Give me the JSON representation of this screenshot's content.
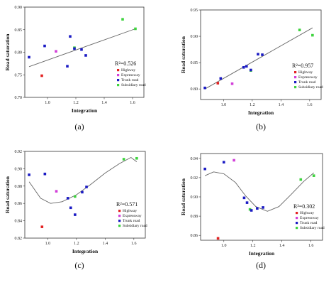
{
  "legend_labels": {
    "Highway": "Highway",
    "Expressway": "Expressway",
    "Trunk": "Trunk road",
    "Subsidiary": "Subsidiary road"
  },
  "colors": {
    "Highway": "#e32222",
    "Expressway": "#d23fd9",
    "Trunk": "#1b1bc4",
    "Subsidiary": "#3fd33f",
    "fit": "#666666"
  },
  "chart_data": [
    {
      "type": "scatter",
      "caption": "(a)",
      "r2": "R²=0.526",
      "xlabel": "Integration",
      "ylabel": "Road saturation",
      "xlim": [
        0.84,
        1.68
      ],
      "ylim": [
        0.7,
        0.9
      ],
      "xticks": [
        "1.0",
        "1.2",
        "1.4",
        "1.6"
      ],
      "yticks": [
        "0.70",
        "0.75",
        "0.80",
        "0.85",
        "0.90"
      ],
      "points": [
        {
          "x": 0.87,
          "y": 0.789,
          "s": "Trunk"
        },
        {
          "x": 0.96,
          "y": 0.748,
          "s": "Highway"
        },
        {
          "x": 0.98,
          "y": 0.814,
          "s": "Trunk"
        },
        {
          "x": 1.06,
          "y": 0.802,
          "s": "Expressway"
        },
        {
          "x": 1.14,
          "y": 0.769,
          "s": "Trunk"
        },
        {
          "x": 1.16,
          "y": 0.835,
          "s": "Trunk"
        },
        {
          "x": 1.19,
          "y": 0.81,
          "s": "Subsidiary"
        },
        {
          "x": 1.19,
          "y": 0.808,
          "s": "Trunk"
        },
        {
          "x": 1.24,
          "y": 0.806,
          "s": "Trunk"
        },
        {
          "x": 1.27,
          "y": 0.793,
          "s": "Trunk"
        },
        {
          "x": 1.53,
          "y": 0.873,
          "s": "Subsidiary"
        },
        {
          "x": 1.62,
          "y": 0.852,
          "s": "Subsidiary"
        }
      ],
      "fit": {
        "x": [
          0.87,
          1.62
        ],
        "y": [
          0.768,
          0.852
        ]
      }
    },
    {
      "type": "scatter",
      "caption": "(b)",
      "r2": "R²=0.957",
      "xlabel": "Integration",
      "ylabel": "Road saturation",
      "xlim": [
        0.84,
        1.68
      ],
      "ylim": [
        0.78,
        0.95
      ],
      "xticks": [
        "1.0",
        "1.2",
        "1.4",
        "1.6"
      ],
      "yticks": [
        "0.80",
        "0.85",
        "0.90",
        "0.95"
      ],
      "points": [
        {
          "x": 0.87,
          "y": 0.802,
          "s": "Trunk"
        },
        {
          "x": 0.96,
          "y": 0.811,
          "s": "Highway"
        },
        {
          "x": 0.98,
          "y": 0.82,
          "s": "Trunk"
        },
        {
          "x": 1.06,
          "y": 0.81,
          "s": "Expressway"
        },
        {
          "x": 1.14,
          "y": 0.841,
          "s": "Trunk"
        },
        {
          "x": 1.16,
          "y": 0.843,
          "s": "Trunk"
        },
        {
          "x": 1.19,
          "y": 0.835,
          "s": "Subsidiary"
        },
        {
          "x": 1.19,
          "y": 0.836,
          "s": "Trunk"
        },
        {
          "x": 1.24,
          "y": 0.866,
          "s": "Trunk"
        },
        {
          "x": 1.27,
          "y": 0.865,
          "s": "Trunk"
        },
        {
          "x": 1.53,
          "y": 0.912,
          "s": "Subsidiary"
        },
        {
          "x": 1.62,
          "y": 0.902,
          "s": "Subsidiary"
        }
      ],
      "fit": {
        "x": [
          0.87,
          1.62
        ],
        "y": [
          0.8,
          0.916
        ]
      }
    },
    {
      "type": "scatter",
      "caption": "(c)",
      "r2": "R²=0.571",
      "xlabel": "Integration",
      "ylabel": "Road saturation",
      "xlim": [
        0.84,
        1.68
      ],
      "ylim": [
        0.82,
        0.92
      ],
      "xticks": [
        "1.0",
        "1.2",
        "1.4",
        "1.6"
      ],
      "yticks": [
        "0.82",
        "0.84",
        "0.86",
        "0.88",
        "0.90",
        "0.92"
      ],
      "points": [
        {
          "x": 0.87,
          "y": 0.893,
          "s": "Trunk"
        },
        {
          "x": 0.96,
          "y": 0.833,
          "s": "Highway"
        },
        {
          "x": 0.98,
          "y": 0.894,
          "s": "Trunk"
        },
        {
          "x": 1.06,
          "y": 0.874,
          "s": "Expressway"
        },
        {
          "x": 1.14,
          "y": 0.866,
          "s": "Trunk"
        },
        {
          "x": 1.16,
          "y": 0.855,
          "s": "Trunk"
        },
        {
          "x": 1.19,
          "y": 0.868,
          "s": "Subsidiary"
        },
        {
          "x": 1.19,
          "y": 0.847,
          "s": "Trunk"
        },
        {
          "x": 1.24,
          "y": 0.873,
          "s": "Trunk"
        },
        {
          "x": 1.27,
          "y": 0.879,
          "s": "Trunk"
        },
        {
          "x": 1.53,
          "y": 0.911,
          "s": "Subsidiary"
        },
        {
          "x": 1.62,
          "y": 0.912,
          "s": "Subsidiary"
        }
      ],
      "fit": {
        "x": [
          0.87,
          0.95,
          1.02,
          1.1,
          1.2,
          1.3,
          1.4,
          1.5,
          1.58,
          1.62
        ],
        "y": [
          0.885,
          0.866,
          0.86,
          0.862,
          0.87,
          0.882,
          0.895,
          0.906,
          0.913,
          0.908
        ]
      }
    },
    {
      "type": "scatter",
      "caption": "(d)",
      "r2": "R²=0.302",
      "xlabel": "Integration",
      "ylabel": "Road saturation",
      "xlim": [
        0.84,
        1.68
      ],
      "ylim": [
        0.855,
        0.945
      ],
      "xticks": [
        "1.0",
        "1.2",
        "1.4",
        "1.6"
      ],
      "yticks": [
        "0.86",
        "0.88",
        "0.90",
        "0.92",
        "0.94"
      ],
      "points": [
        {
          "x": 0.87,
          "y": 0.929,
          "s": "Trunk"
        },
        {
          "x": 0.96,
          "y": 0.857,
          "s": "Highway"
        },
        {
          "x": 1.0,
          "y": 0.936,
          "s": "Trunk"
        },
        {
          "x": 1.07,
          "y": 0.938,
          "s": "Expressway"
        },
        {
          "x": 1.14,
          "y": 0.899,
          "s": "Trunk"
        },
        {
          "x": 1.16,
          "y": 0.894,
          "s": "Trunk"
        },
        {
          "x": 1.18,
          "y": 0.887,
          "s": "Subsidiary"
        },
        {
          "x": 1.19,
          "y": 0.886,
          "s": "Trunk"
        },
        {
          "x": 1.23,
          "y": 0.888,
          "s": "Trunk"
        },
        {
          "x": 1.27,
          "y": 0.889,
          "s": "Trunk"
        },
        {
          "x": 1.53,
          "y": 0.918,
          "s": "Subsidiary"
        },
        {
          "x": 1.62,
          "y": 0.922,
          "s": "Subsidiary"
        }
      ],
      "fit": {
        "x": [
          0.87,
          0.93,
          1.0,
          1.08,
          1.15,
          1.22,
          1.3,
          1.38,
          1.46,
          1.55,
          1.62
        ],
        "y": [
          0.922,
          0.926,
          0.924,
          0.915,
          0.901,
          0.89,
          0.885,
          0.89,
          0.902,
          0.916,
          0.925
        ]
      }
    }
  ]
}
